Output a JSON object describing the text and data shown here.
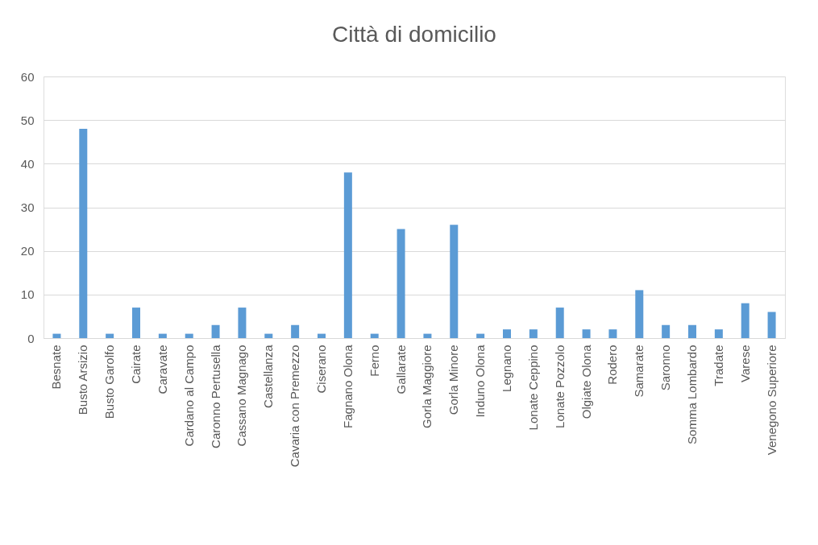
{
  "chart_data": {
    "type": "bar",
    "title": "Città di domicilio",
    "categories": [
      "Besnate",
      "Busto Arsizio",
      "Busto Garolfo",
      "Cairate",
      "Caravate",
      "Cardano al Campo",
      "Caronno Pertusella",
      "Cassano Magnago",
      "Castellanza",
      "Cavaria con Premezzo",
      "Ciserano",
      "Fagnano Olona",
      "Ferno",
      "Gallarate",
      "Gorla Maggiore",
      "Gorla Minore",
      "Induno Olona",
      "Legnano",
      "Lonate Ceppino",
      "Lonate Pozzolo",
      "Olgiate Olona",
      "Rodero",
      "Samarate",
      "Saronno",
      "Somma Lombardo",
      "Tradate",
      "Varese",
      "Venegono Superiore"
    ],
    "values": [
      1,
      48,
      1,
      7,
      1,
      1,
      3,
      7,
      1,
      3,
      1,
      38,
      1,
      25,
      1,
      26,
      1,
      2,
      2,
      7,
      2,
      2,
      11,
      3,
      3,
      2,
      8,
      6
    ],
    "color": "#5b9bd5",
    "ylim": [
      0,
      60
    ],
    "yticks": [
      0,
      10,
      20,
      30,
      40,
      50,
      60
    ],
    "grid": "y"
  }
}
